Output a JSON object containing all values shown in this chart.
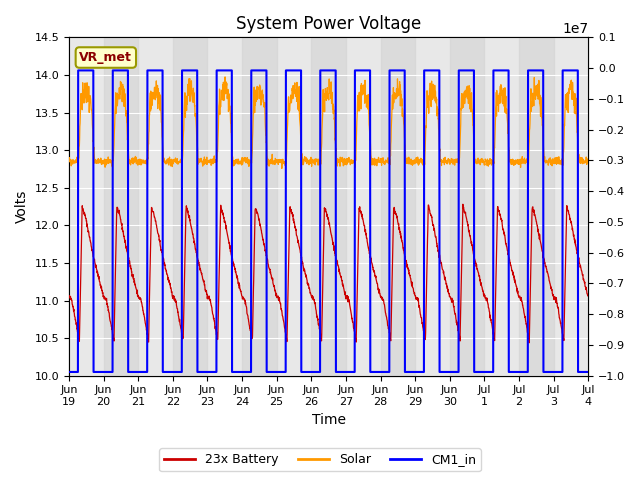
{
  "title": "System Power Voltage",
  "xlabel": "Time",
  "ylabel_left": "Volts",
  "ylim_left": [
    10.0,
    14.5
  ],
  "ylim_right": [
    -10000000,
    1000000
  ],
  "yticks_right": [
    1000000,
    0,
    -1000000,
    -2000000,
    -3000000,
    -4000000,
    -5000000,
    -6000000,
    -7000000,
    -8000000,
    -9000000,
    -10000000
  ],
  "xtick_labels": [
    "Jun\n19",
    "Jun\n20",
    "Jun\n21",
    "Jun\n22",
    "Jun\n23",
    "Jun\n24",
    "Jun\n25",
    "Jun\n26",
    "Jun\n27",
    "Jun\n28",
    "Jun\n29",
    "Jun\n30",
    "Jul\n1",
    "Jul\n2",
    "Jul\n3",
    "Jul\n4"
  ],
  "vr_met_label": "VR_met",
  "legend_labels": [
    "23x Battery",
    "Solar",
    "CM1_in"
  ],
  "legend_colors": [
    "#cc0000",
    "#ff9900",
    "#0000ff"
  ],
  "background_color": "#ffffff",
  "plot_bg_color": "#e8e8e8",
  "band_color": "#d3d3d3",
  "grid_color": "#ffffff",
  "title_fontsize": 12,
  "axis_fontsize": 10,
  "tick_fontsize": 8,
  "n_days": 15
}
